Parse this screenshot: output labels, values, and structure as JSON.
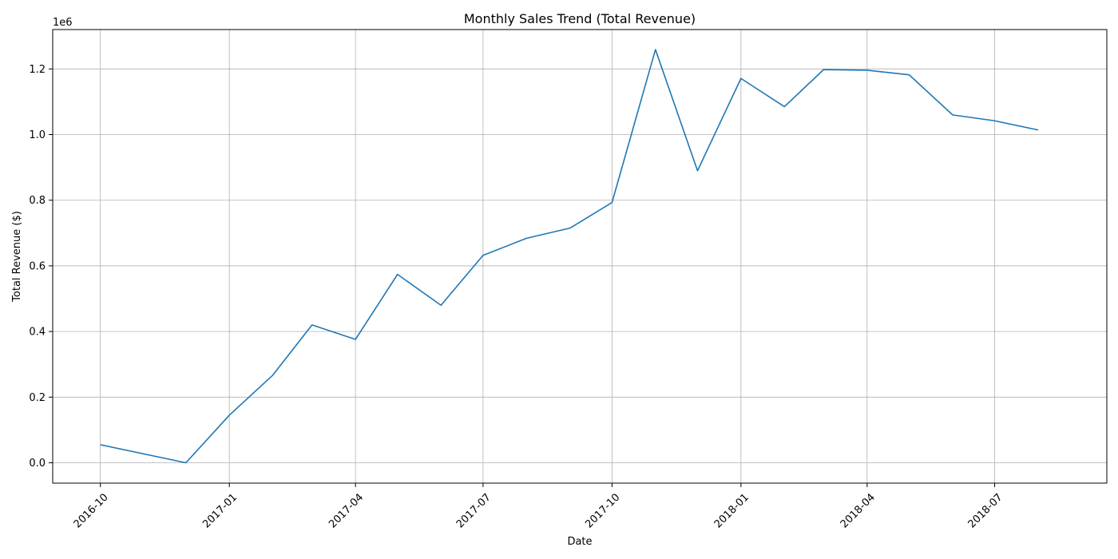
{
  "chart_data": {
    "type": "line",
    "title": "Monthly Sales Trend (Total Revenue)",
    "xlabel": "Date",
    "ylabel": "Total Revenue ($)",
    "y_offset_label": "1e6",
    "x": [
      "2016-10-01",
      "2016-12-01",
      "2017-01-01",
      "2017-02-01",
      "2017-03-01",
      "2017-04-01",
      "2017-05-01",
      "2017-06-01",
      "2017-07-01",
      "2017-08-01",
      "2017-09-01",
      "2017-10-01",
      "2017-11-01",
      "2017-12-01",
      "2018-01-01",
      "2018-02-01",
      "2018-03-01",
      "2018-04-01",
      "2018-05-01",
      "2018-06-01",
      "2018-07-01",
      "2018-08-01"
    ],
    "series": [
      {
        "values": [
          55000,
          0,
          145000,
          267000,
          420000,
          376000,
          574000,
          480000,
          632000,
          684000,
          715000,
          793000,
          1259000,
          890000,
          1171000,
          1085000,
          1198000,
          1196000,
          1182000,
          1060000,
          1042000,
          1014000
        ],
        "color": "#1f77b4"
      }
    ],
    "x_ticks": [
      "2016-10",
      "2017-01",
      "2017-04",
      "2017-07",
      "2017-10",
      "2018-01",
      "2018-04",
      "2018-07"
    ],
    "y_ticks": [
      0.0,
      0.2,
      0.4,
      0.6,
      0.8,
      1.0,
      1.2
    ],
    "y_tick_labels": [
      "0.0",
      "0.2",
      "0.4",
      "0.6",
      "0.8",
      "1.0",
      "1.2"
    ],
    "ylim": [
      -62000,
      1320000
    ],
    "xlim": [
      "2016-08-28",
      "2018-09-19"
    ],
    "grid": true,
    "legend": "none"
  }
}
